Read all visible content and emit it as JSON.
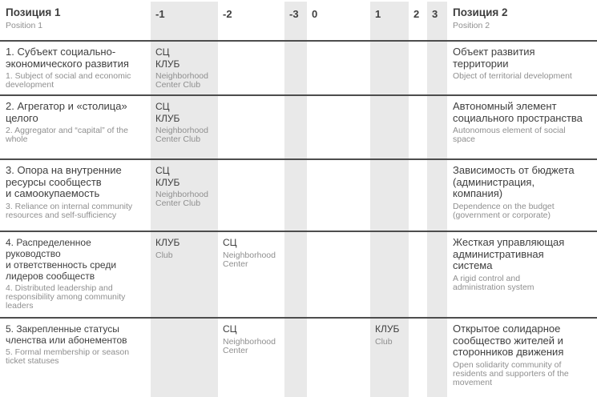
{
  "colors": {
    "shaded_column": "#e9e9e9",
    "row_border": "#4d4d4d",
    "text_primary": "#3f3f3f",
    "text_secondary": "#8f8f8f"
  },
  "header": {
    "left": {
      "ru": "Позиция 1",
      "en": "Position 1"
    },
    "scale": [
      "-1",
      "-2",
      "-3",
      "0",
      "1",
      "2",
      "3"
    ],
    "right": {
      "ru": "Позиция 2",
      "en": "Position 2"
    }
  },
  "rows": [
    {
      "left": {
        "ru": "1. Субъект социально-\nэкономического развития",
        "en": "1. Subject of social and economic\ndevelopment"
      },
      "cells": {
        "-1": {
          "ru": "СЦ\nКЛУБ",
          "en": "Neighborhood\nCenter Club"
        }
      },
      "right": {
        "ru": "Объект развития\nтерритории",
        "en": "Object of territorial development"
      }
    },
    {
      "left": {
        "ru": "2. Агрегатор и «столица»\nцелого",
        "en": "2. Aggregator and “capital” of the\nwhole"
      },
      "cells": {
        "-1": {
          "ru": "СЦ\nКЛУБ",
          "en": "Neighborhood\nCenter Club"
        }
      },
      "right": {
        "ru": "Автономный элемент\nсоциального пространства",
        "en": "Autonomous element of social\nspace"
      }
    },
    {
      "left": {
        "ru": "3. Опора на внутренние\nресурсы сообществ\nи самоокупаемость",
        "en": "3. Reliance on internal community\nresources and self-sufficiency"
      },
      "cells": {
        "-1": {
          "ru": "СЦ\nКЛУБ",
          "en": "Neighborhood\nCenter Club"
        }
      },
      "right": {
        "ru": "Зависимость от бюджета\n(администрация,\nкомпания)",
        "en": "Dependence on the budget\n(government or corporate)"
      }
    },
    {
      "left": {
        "ru": "4. Распределенное руководство\nи ответственность среди\nлидеров сообществ",
        "en": "4. Distributed leadership and\nresponsibility among community\nleaders"
      },
      "cells": {
        "-1": {
          "ru": "КЛУБ",
          "en": "Club"
        },
        "-2": {
          "ru": "СЦ",
          "en": "Neighborhood\nCenter"
        }
      },
      "right": {
        "ru": "Жесткая управляющая\nадминистративная\nсистема",
        "en": "A rigid control and\nadministration system"
      }
    },
    {
      "left": {
        "ru": "5. Закрепленные статусы\nчленства или абонементов",
        "en": "5. Formal membership or season\nticket statuses"
      },
      "cells": {
        "-2": {
          "ru": "СЦ",
          "en": "Neighborhood\nCenter"
        },
        "1": {
          "ru": "КЛУБ",
          "en": "Club"
        }
      },
      "right": {
        "ru": "Открытое солидарное\nсообщество жителей и\nсторонников движения",
        "en": "Open solidarity community of\nresidents and supporters of the\nmovement"
      }
    }
  ]
}
